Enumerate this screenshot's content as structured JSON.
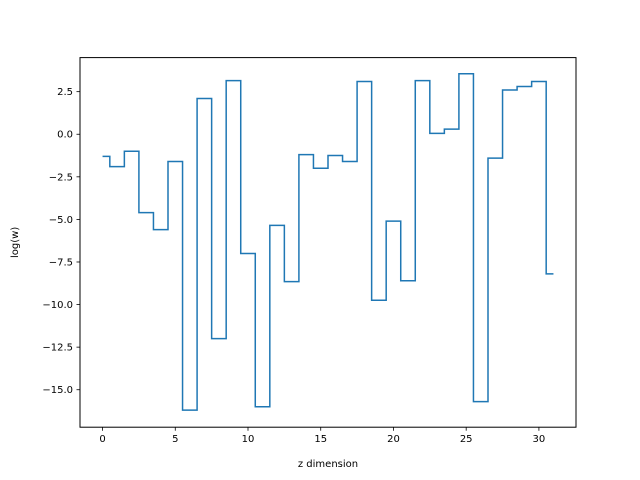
{
  "chart_data": {
    "type": "line",
    "drawstyle": "steps-mid",
    "title": "",
    "xlabel": "z dimension",
    "ylabel": "log(w)",
    "xlim": [
      -1.55,
      32.55
    ],
    "ylim": [
      -17.2,
      4.5
    ],
    "xticks": [
      0,
      5,
      10,
      15,
      20,
      25,
      30
    ],
    "xtick_labels": [
      "0",
      "5",
      "10",
      "15",
      "20",
      "25",
      "30"
    ],
    "yticks": [
      -15.0,
      -12.5,
      -10.0,
      -7.5,
      -5.0,
      -2.5,
      0.0,
      2.5
    ],
    "ytick_labels": [
      "−15.0",
      "−12.5",
      "−10.0",
      "−7.5",
      "−5.0",
      "−2.5",
      "0.0",
      "2.5"
    ],
    "grid": false,
    "legend": "none",
    "series": [
      {
        "color": "#1f77b4",
        "x": [
          0,
          1,
          2,
          3,
          4,
          5,
          6,
          7,
          8,
          9,
          10,
          11,
          12,
          13,
          14,
          15,
          16,
          17,
          18,
          19,
          20,
          21,
          22,
          23,
          24,
          25,
          26,
          27,
          28,
          29,
          30,
          31
        ],
        "y": [
          -1.3,
          -1.9,
          -1.0,
          -4.6,
          -5.6,
          -1.6,
          -16.2,
          2.1,
          -12.0,
          3.15,
          -7.0,
          -16.0,
          -5.35,
          -8.65,
          -1.2,
          -2.0,
          -1.25,
          -1.6,
          3.1,
          -9.75,
          -5.1,
          -8.6,
          3.15,
          0.05,
          0.3,
          3.55,
          -15.7,
          -1.4,
          2.6,
          2.8,
          3.1,
          -8.2
        ]
      }
    ]
  }
}
